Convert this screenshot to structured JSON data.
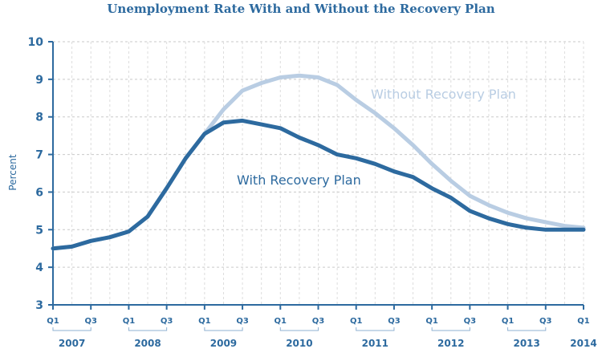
{
  "chart_data": {
    "type": "line",
    "title": "Unemployment Rate With and Without the Recovery Plan",
    "ylabel": "Percent",
    "xlabel": "",
    "ylim": [
      3,
      10
    ],
    "yticks": [
      3,
      4,
      5,
      6,
      7,
      8,
      9,
      10
    ],
    "grid": true,
    "quarter_ticks": [
      "Q1",
      "Q3",
      "Q1",
      "Q3",
      "Q1",
      "Q3",
      "Q1",
      "Q3",
      "Q1",
      "Q3",
      "Q1",
      "Q3",
      "Q1",
      "Q3",
      "Q1"
    ],
    "year_labels": [
      "2007",
      "2008",
      "2009",
      "2010",
      "2011",
      "2012",
      "2013",
      "2014"
    ],
    "x_quarters": [
      "2007Q1",
      "2007Q2",
      "2007Q3",
      "2007Q4",
      "2008Q1",
      "2008Q2",
      "2008Q3",
      "2008Q4",
      "2009Q1",
      "2009Q2",
      "2009Q3",
      "2009Q4",
      "2010Q1",
      "2010Q2",
      "2010Q3",
      "2010Q4",
      "2011Q1",
      "2011Q2",
      "2011Q3",
      "2011Q4",
      "2012Q1",
      "2012Q2",
      "2012Q3",
      "2012Q4",
      "2013Q1",
      "2013Q2",
      "2013Q3",
      "2013Q4",
      "2014Q1"
    ],
    "series": [
      {
        "name": "Without Recovery Plan",
        "color": "#b9cde3",
        "values": [
          4.5,
          4.55,
          4.7,
          4.8,
          4.95,
          5.35,
          6.1,
          6.9,
          7.55,
          8.2,
          8.7,
          8.9,
          9.05,
          9.1,
          9.05,
          8.85,
          8.45,
          8.1,
          7.7,
          7.25,
          6.75,
          6.3,
          5.9,
          5.65,
          5.45,
          5.3,
          5.2,
          5.1,
          5.05
        ]
      },
      {
        "name": "With Recovery Plan",
        "color": "#2d6a9f",
        "values": [
          4.5,
          4.55,
          4.7,
          4.8,
          4.95,
          5.35,
          6.1,
          6.9,
          7.55,
          7.85,
          7.9,
          7.8,
          7.7,
          7.45,
          7.25,
          7.0,
          6.9,
          6.75,
          6.55,
          6.4,
          6.1,
          5.85,
          5.5,
          5.3,
          5.15,
          5.05,
          5.0,
          5.0,
          5.0
        ]
      }
    ]
  }
}
